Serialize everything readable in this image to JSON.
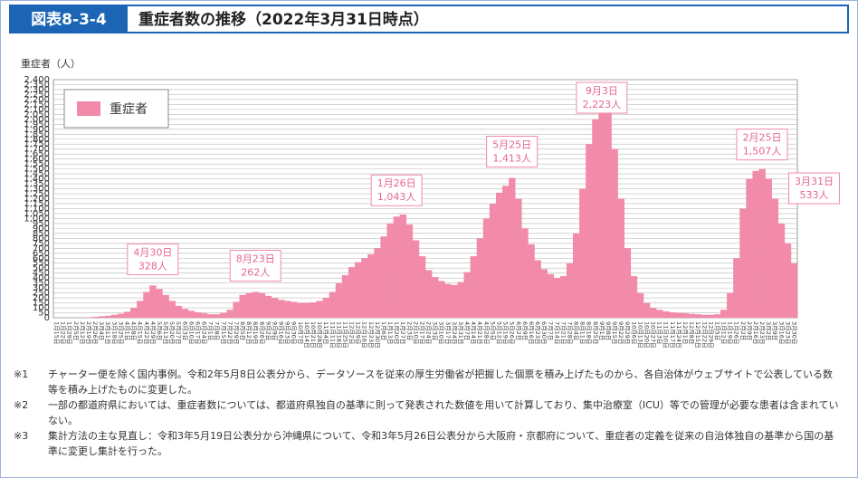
{
  "header": {
    "figure_no": "図表8-3-4",
    "title": "重症者数の推移（2022年3月31日時点）"
  },
  "chart_data": {
    "type": "bar",
    "y_label": "重症者（人）",
    "series": [
      {
        "name": "重症者",
        "color": "#f28aa9",
        "values": [
          0,
          0,
          0,
          0,
          0,
          5,
          10,
          15,
          20,
          30,
          40,
          60,
          100,
          170,
          260,
          325,
          290,
          230,
          170,
          120,
          90,
          70,
          55,
          45,
          35,
          35,
          50,
          80,
          160,
          230,
          250,
          260,
          250,
          220,
          200,
          180,
          170,
          160,
          150,
          150,
          155,
          170,
          200,
          260,
          350,
          430,
          510,
          560,
          600,
          640,
          700,
          820,
          950,
          1020,
          1040,
          940,
          780,
          620,
          480,
          410,
          370,
          340,
          330,
          360,
          460,
          620,
          800,
          1000,
          1150,
          1260,
          1330,
          1410,
          1200,
          900,
          740,
          580,
          490,
          440,
          400,
          420,
          550,
          850,
          1300,
          1750,
          2000,
          2200,
          2130,
          1700,
          1200,
          700,
          420,
          250,
          150,
          100,
          80,
          65,
          55,
          50,
          45,
          40,
          35,
          30,
          30,
          35,
          80,
          250,
          600,
          1100,
          1400,
          1480,
          1500,
          1400,
          1200,
          950,
          750,
          550
        ]
      }
    ],
    "categories": [
      "1月15日",
      "1月22日",
      "1月29日",
      "2月5日",
      "2月12日",
      "2月19日",
      "2月26日",
      "3月4日",
      "3月11日",
      "3月18日",
      "3月25日",
      "4月1日",
      "4月8日",
      "4月15日",
      "4月22日",
      "4月29日",
      "5月6日",
      "5月13日",
      "5月20日",
      "5月27日",
      "6月3日",
      "6月10日",
      "6月17日",
      "6月24日",
      "7月1日",
      "7月8日",
      "7月15日",
      "7月22日",
      "7月29日",
      "8月5日",
      "8月12日",
      "8月19日",
      "8月26日",
      "9月2日",
      "9月9日",
      "9月16日",
      "9月23日",
      "9月30日",
      "10月7日",
      "10月14日",
      "10月21日",
      "10月28日",
      "11月4日",
      "11月11日",
      "11月18日",
      "11月25日",
      "12月2日",
      "12月9日",
      "12月16日",
      "12月23日",
      "12月30日",
      "1月6日",
      "1月13日",
      "1月20日",
      "1月27日",
      "2月3日",
      "2月10日",
      "2月17日",
      "2月24日",
      "3月3日",
      "3月10日",
      "3月17日",
      "3月24日",
      "3月31日",
      "4月7日",
      "4月14日",
      "4月21日",
      "4月28日",
      "5月5日",
      "5月12日",
      "5月19日",
      "5月26日",
      "6月2日",
      "6月9日",
      "6月16日",
      "6月23日",
      "6月30日",
      "7月7日",
      "7月14日",
      "7月21日",
      "7月28日",
      "8月4日",
      "8月11日",
      "8月18日",
      "8月25日",
      "9月1日",
      "9月8日",
      "9月15日",
      "9月22日",
      "9月29日",
      "10月6日",
      "10月13日",
      "10月20日",
      "10月27日",
      "11月3日",
      "11月10日",
      "11月17日",
      "11月24日",
      "12月1日",
      "12月8日",
      "12月15日",
      "12月22日",
      "12月29日",
      "1月5日",
      "1月12日",
      "1月19日",
      "1月26日",
      "2月2日",
      "2月9日",
      "2月16日",
      "2月23日",
      "3月2日",
      "3月9日",
      "3月16日",
      "3月23日",
      "3月30日"
    ],
    "ylim": [
      0,
      2400
    ],
    "yticks": [
      0,
      50,
      100,
      150,
      200,
      250,
      300,
      350,
      400,
      450,
      500,
      550,
      600,
      650,
      700,
      750,
      800,
      850,
      900,
      950,
      {
        "value": 1000,
        "label": "1,000"
      },
      {
        "value": 1050,
        "label": "1,050"
      },
      {
        "value": 1100,
        "label": "1,100"
      },
      {
        "value": 1150,
        "label": "1,150"
      },
      {
        "value": 1200,
        "label": "1,200"
      },
      {
        "value": 1250,
        "label": "1,250"
      },
      {
        "value": 1300,
        "label": "1,300"
      },
      {
        "value": 1350,
        "label": "1,350"
      },
      {
        "value": 1400,
        "label": "1,400"
      },
      {
        "value": 1450,
        "label": "1,450"
      },
      {
        "value": 1500,
        "label": "1,500"
      },
      {
        "value": 1550,
        "label": "1,550"
      },
      {
        "value": 1600,
        "label": "1,600"
      },
      {
        "value": 1650,
        "label": "1,650"
      },
      {
        "value": 1700,
        "label": "1,700"
      },
      {
        "value": 1750,
        "label": "1,750"
      },
      {
        "value": 1800,
        "label": "1,800"
      },
      {
        "value": 1850,
        "label": "1,850"
      },
      {
        "value": 1900,
        "label": "1,900"
      },
      {
        "value": 1950,
        "label": "1,950"
      },
      {
        "value": 2000,
        "label": "2,000"
      },
      {
        "value": 2050,
        "label": "2,050"
      },
      {
        "value": 2100,
        "label": "2,100"
      },
      {
        "value": 2150,
        "label": "2,150"
      },
      {
        "value": 2200,
        "label": "2,200"
      },
      {
        "value": 2250,
        "label": "2,250"
      },
      {
        "value": 2300,
        "label": "2,300"
      },
      {
        "value": 2350,
        "label": "2,350"
      },
      {
        "value": 2400,
        "label": "2,400"
      }
    ],
    "grid": true,
    "legend": "upper left",
    "annotations": [
      {
        "date": "4月30日",
        "count": "328人"
      },
      {
        "date": "8月23日",
        "count": "262人"
      },
      {
        "date": "1月26日",
        "count": "1,043人"
      },
      {
        "date": "5月25日",
        "count": "1,413人"
      },
      {
        "date": "9月3日",
        "count": "2,223人"
      },
      {
        "date": "2月25日",
        "count": "1,507人"
      },
      {
        "date": "3月31日",
        "count": "533人"
      }
    ]
  },
  "notes": [
    {
      "mark": "※1",
      "text": "チャーター便を除く国内事例。令和2年5月8日公表分から、データソースを従来の厚生労働省が把握した個票を積み上げたものから、各自治体がウェブサイトで公表している数等を積み上げたものに変更した。"
    },
    {
      "mark": "※2",
      "text": "一部の都道府県においては、重症者数については、都道府県独自の基準に則って発表された数値を用いて計算しており、集中治療室（ICU）等での管理が必要な患者は含まれていない。"
    },
    {
      "mark": "※3",
      "text": "集計方法の主な見直し：令和3年5月19日公表分から沖縄県について、令和3年5月26日公表分から大阪府・京都府について、重症者の定義を従来の自治体独自の基準から国の基準に変更し集計を行った。"
    }
  ]
}
